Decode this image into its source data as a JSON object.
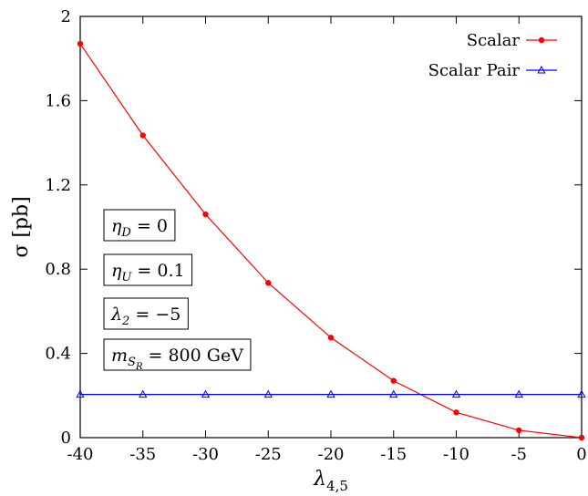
{
  "chart_data": {
    "type": "line",
    "xlabel": "λ4,5",
    "ylabel": "σ [pb]",
    "xlim": [
      -40,
      0
    ],
    "ylim": [
      0,
      2
    ],
    "x_ticks": [
      "-40",
      "-35",
      "-30",
      "-25",
      "-20",
      "-15",
      "-10",
      "-5",
      "0"
    ],
    "y_ticks": [
      "0",
      "0.4",
      "0.8",
      "1.2",
      "1.6",
      "2"
    ],
    "x": [
      -40,
      -35,
      -30,
      -25,
      -20,
      -15,
      -10,
      -5,
      0
    ],
    "series": [
      {
        "name": "Scalar",
        "color": "#ff0000",
        "marker": "circle",
        "values": [
          1.87,
          1.435,
          1.06,
          0.735,
          0.475,
          0.27,
          0.12,
          0.035,
          0.0
        ]
      },
      {
        "name": "Scalar Pair",
        "color": "#0000ff",
        "marker": "triangle",
        "values": [
          0.205,
          0.205,
          0.205,
          0.205,
          0.205,
          0.205,
          0.205,
          0.205,
          0.205
        ]
      }
    ],
    "legend_position": "top-right",
    "grid": false
  },
  "annotations": [
    {
      "main": "η",
      "sub": "D",
      "rest": " = 0"
    },
    {
      "main": "η",
      "sub": "U",
      "rest": " = 0.1"
    },
    {
      "main": "λ",
      "sub": "2",
      "rest": " = −5"
    },
    {
      "main": "m",
      "sub": "S",
      "subsub": "R",
      "rest": " = 800 GeV"
    }
  ]
}
